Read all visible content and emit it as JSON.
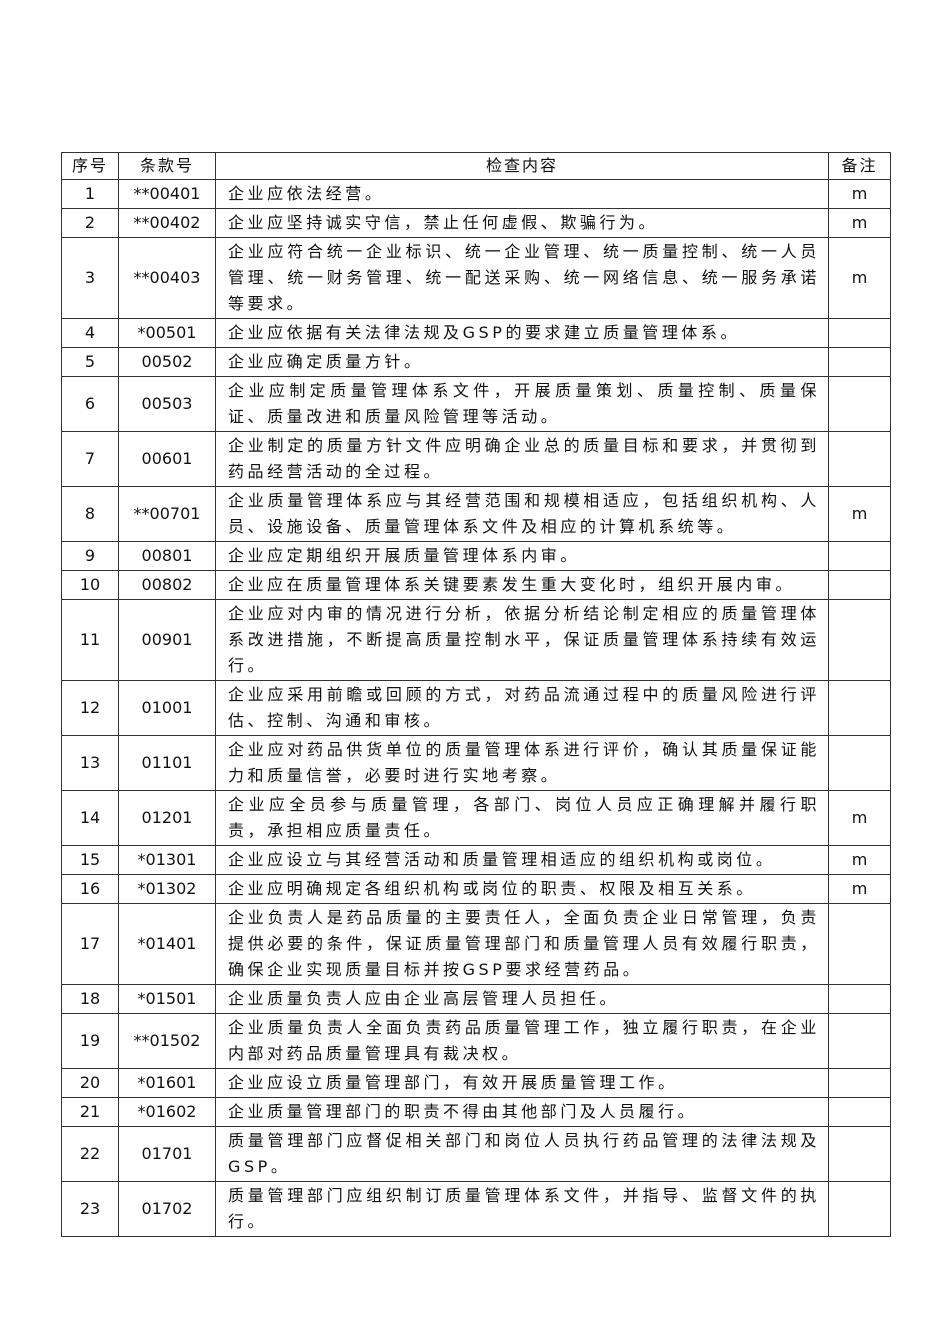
{
  "table": {
    "headers": [
      "序号",
      "条款号",
      "检查内容",
      "备注"
    ],
    "rows": [
      {
        "no": "1",
        "clause": "**00401",
        "content": "企业应依法经营。",
        "note": "m"
      },
      {
        "no": "2",
        "clause": "**00402",
        "content": "企业应坚持诚实守信，禁止任何虚假、欺骗行为。",
        "note": "m"
      },
      {
        "no": "3",
        "clause": "**00403",
        "content": "企业应符合统一企业标识、统一企业管理、统一质量控制、统一人员管理、统一财务管理、统一配送采购、统一网络信息、统一服务承诺等要求。",
        "note": "m"
      },
      {
        "no": "4",
        "clause": "*00501",
        "content": "企业应依据有关法律法规及GSP的要求建立质量管理体系。",
        "note": ""
      },
      {
        "no": "5",
        "clause": "00502",
        "content": "企业应确定质量方针。",
        "note": ""
      },
      {
        "no": "6",
        "clause": "00503",
        "content": "企业应制定质量管理体系文件，开展质量策划、质量控制、质量保证、质量改进和质量风险管理等活动。",
        "note": ""
      },
      {
        "no": "7",
        "clause": "00601",
        "content": "企业制定的质量方针文件应明确企业总的质量目标和要求，并贯彻到药品经营活动的全过程。",
        "note": ""
      },
      {
        "no": "8",
        "clause": "**00701",
        "content": "企业质量管理体系应与其经营范围和规模相适应，包括组织机构、人员、设施设备、质量管理体系文件及相应的计算机系统等。",
        "note": "m"
      },
      {
        "no": "9",
        "clause": "00801",
        "content": "企业应定期组织开展质量管理体系内审。",
        "note": ""
      },
      {
        "no": "10",
        "clause": "00802",
        "content": "企业应在质量管理体系关键要素发生重大变化时，组织开展内审。",
        "note": ""
      },
      {
        "no": "11",
        "clause": "00901",
        "content": "企业应对内审的情况进行分析，依据分析结论制定相应的质量管理体系改进措施，不断提高质量控制水平，保证质量管理体系持续有效运行。",
        "note": ""
      },
      {
        "no": "12",
        "clause": "01001",
        "content": "企业应采用前瞻或回顾的方式，对药品流通过程中的质量风险进行评估、控制、沟通和审核。",
        "note": ""
      },
      {
        "no": "13",
        "clause": "01101",
        "content": "企业应对药品供货单位的质量管理体系进行评价，确认其质量保证能力和质量信誉，必要时进行实地考察。",
        "note": ""
      },
      {
        "no": "14",
        "clause": "01201",
        "content": "企业应全员参与质量管理，各部门、岗位人员应正确理解并履行职责，承担相应质量责任。",
        "note": "m"
      },
      {
        "no": "15",
        "clause": "*01301",
        "content": "企业应设立与其经营活动和质量管理相适应的组织机构或岗位。",
        "note": "m"
      },
      {
        "no": "16",
        "clause": "*01302",
        "content": "企业应明确规定各组织机构或岗位的职责、权限及相互关系。",
        "note": "m"
      },
      {
        "no": "17",
        "clause": "*01401",
        "content": "企业负责人是药品质量的主要责任人，全面负责企业日常管理，负责提供必要的条件，保证质量管理部门和质量管理人员有效履行职责，确保企业实现质量目标并按GSP要求经营药品。",
        "note": ""
      },
      {
        "no": "18",
        "clause": "*01501",
        "content": "企业质量负责人应由企业高层管理人员担任。",
        "note": ""
      },
      {
        "no": "19",
        "clause": "**01502",
        "content": "企业质量负责人全面负责药品质量管理工作，独立履行职责，在企业内部对药品质量管理具有裁决权。",
        "note": ""
      },
      {
        "no": "20",
        "clause": "*01601",
        "content": "企业应设立质量管理部门，有效开展质量管理工作。",
        "note": ""
      },
      {
        "no": "21",
        "clause": "*01602",
        "content": "企业质量管理部门的职责不得由其他部门及人员履行。",
        "note": ""
      },
      {
        "no": "22",
        "clause": "01701",
        "content": "质量管理部门应督促相关部门和岗位人员执行药品管理的法律法规及GSP。",
        "note": ""
      },
      {
        "no": "23",
        "clause": "01702",
        "content": "质量管理部门应组织制订质量管理体系文件，并指导、监督文件的执行。",
        "note": ""
      }
    ]
  }
}
